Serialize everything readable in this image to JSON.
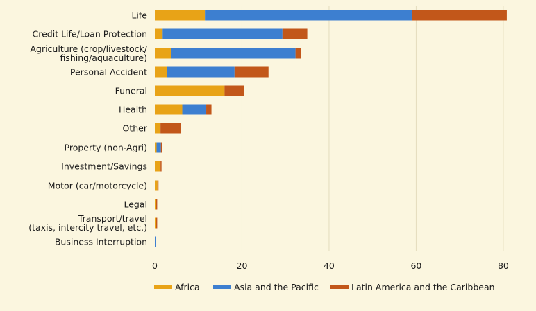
{
  "chart_data": {
    "type": "bar",
    "orientation": "horizontal",
    "stacked": true,
    "categories": [
      [
        "Life"
      ],
      [
        "Credit Life/Loan Protection"
      ],
      [
        "Agriculture (crop/livestock/",
        "fishing/aquaculture)"
      ],
      [
        "Personal Accident"
      ],
      [
        "Funeral"
      ],
      [
        "Health"
      ],
      [
        "Other"
      ],
      [
        "Property (non-Agri)"
      ],
      [
        "Investment/Savings"
      ],
      [
        "Motor (car/motorcycle)"
      ],
      [
        "Legal"
      ],
      [
        "Transport/travel",
        "(taxis, intercity travel, etc.)"
      ],
      [
        "Business Interruption"
      ]
    ],
    "series": [
      {
        "name": "Africa",
        "color": "#e8a317",
        "values": [
          11.5,
          1.8,
          3.8,
          2.8,
          16,
          6.3,
          1.3,
          0.4,
          1.3,
          0.6,
          0.3,
          0.3,
          0
        ]
      },
      {
        "name": "Asia and the Pacific",
        "color": "#3d7fd0",
        "values": [
          47.5,
          27.5,
          28.5,
          15.5,
          0,
          5.5,
          0,
          1.0,
          0,
          0,
          0,
          0,
          0.3
        ]
      },
      {
        "name": "Latin America and the Caribbean",
        "color": "#c2571a",
        "values": [
          21.8,
          5.7,
          1.2,
          7.8,
          4.5,
          1.2,
          4.7,
          0.3,
          0.2,
          0.2,
          0.1,
          0.2,
          0
        ]
      }
    ],
    "xlim": [
      0,
      84
    ],
    "xticks": [
      0,
      20,
      40,
      60,
      80
    ],
    "grid": "vertical",
    "legend_position": "bottom"
  }
}
